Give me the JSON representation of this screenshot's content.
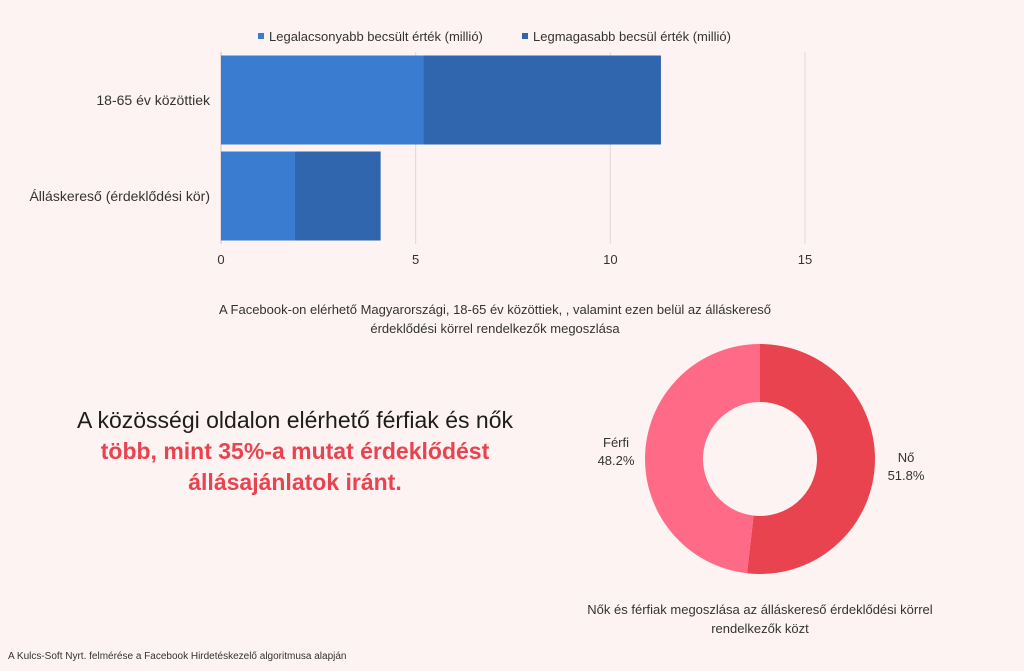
{
  "chart_data": [
    {
      "type": "bar",
      "orientation": "horizontal",
      "stacked": true,
      "categories": [
        "18-65 év közöttiek",
        "Álláskereső (érdeklődési kör)"
      ],
      "series": [
        {
          "name": "Legalacsonyabb becsült érték (millió)",
          "values": [
            5.2,
            1.9
          ],
          "color": "#3a7ccf"
        },
        {
          "name": "Legmagasabb becsül érték (millió)",
          "values": [
            6.1,
            2.2
          ],
          "color": "#2f66ad"
        }
      ],
      "xlim": [
        0,
        15
      ],
      "xticks": [
        0,
        5,
        10,
        15
      ],
      "legend": "top-center",
      "grid": true,
      "title": "A Facebook-on elérhető Magyarországi, 18-65 év közöttiek, , valamint ezen belül az álláskereső érdeklődési körrel rendelkezők megoszlása"
    },
    {
      "type": "pie",
      "donut": true,
      "slices": [
        {
          "label": "Nő",
          "value": 51.8,
          "display": "51.8%",
          "color": "#e8434f"
        },
        {
          "label": "Férfi",
          "value": 48.2,
          "display": "48.2%",
          "color": "#ff6b87"
        }
      ],
      "title": "Nők és férfiak megoszlása az álláskereső érdeklődési körrel rendelkezők közt"
    }
  ],
  "headline": {
    "part1": "A közösségi oldalon elérhető férfiak és nők ",
    "accent": "több, mint 35%-a mutat érdeklődést állásajánlatok iránt."
  },
  "footer": "A Kulcs-Soft Nyrt. felmérése a Facebook Hirdetéskezelő algoritmusa alapján"
}
